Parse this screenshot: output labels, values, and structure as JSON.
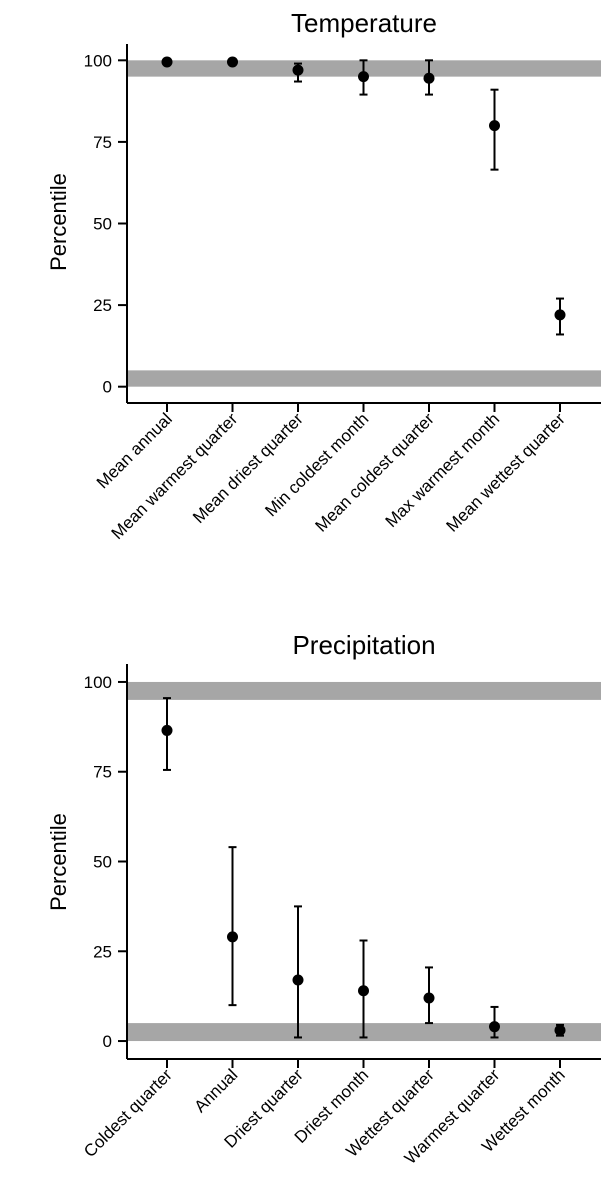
{
  "chart_data": [
    {
      "type": "scatter",
      "title": "Temperature",
      "xlabel": "",
      "ylabel": "Percentile",
      "ylim": [
        -5,
        105
      ],
      "yticks": [
        0,
        25,
        50,
        75,
        100
      ],
      "reference_bands": [
        [
          0,
          5
        ],
        [
          95,
          100
        ]
      ],
      "band_color": "#a6a6a6",
      "categories": [
        "Mean annual",
        "Mean warmest quarter",
        "Mean driest quarter",
        "Min coldest month",
        "Mean coldest quarter",
        "Max warmest month",
        "Mean wettest quarter"
      ],
      "values": [
        99.5,
        99.5,
        97,
        95,
        94.5,
        80,
        22
      ],
      "error_low": [
        99.5,
        99.5,
        93.5,
        89.5,
        89.5,
        66.5,
        16
      ],
      "error_high": [
        99.5,
        99.5,
        99,
        100,
        100,
        91,
        27
      ],
      "grid": false,
      "legend": "none"
    },
    {
      "type": "scatter",
      "title": "Precipitation",
      "xlabel": "",
      "ylabel": "Percentile",
      "ylim": [
        -5,
        105
      ],
      "yticks": [
        0,
        25,
        50,
        75,
        100
      ],
      "reference_bands": [
        [
          0,
          5
        ],
        [
          95,
          100
        ]
      ],
      "band_color": "#a6a6a6",
      "categories": [
        "Coldest quarter",
        "Annual",
        "Driest quarter",
        "Driest month",
        "Wettest quarter",
        "Warmest quarter",
        "Wettest month"
      ],
      "values": [
        86.5,
        29,
        17,
        14,
        12,
        4,
        3
      ],
      "error_low": [
        75.5,
        10,
        1,
        1,
        5,
        1,
        1.5
      ],
      "error_high": [
        95.5,
        54,
        37.5,
        28,
        20.5,
        9.5,
        4.5
      ],
      "grid": false,
      "legend": "none"
    }
  ]
}
